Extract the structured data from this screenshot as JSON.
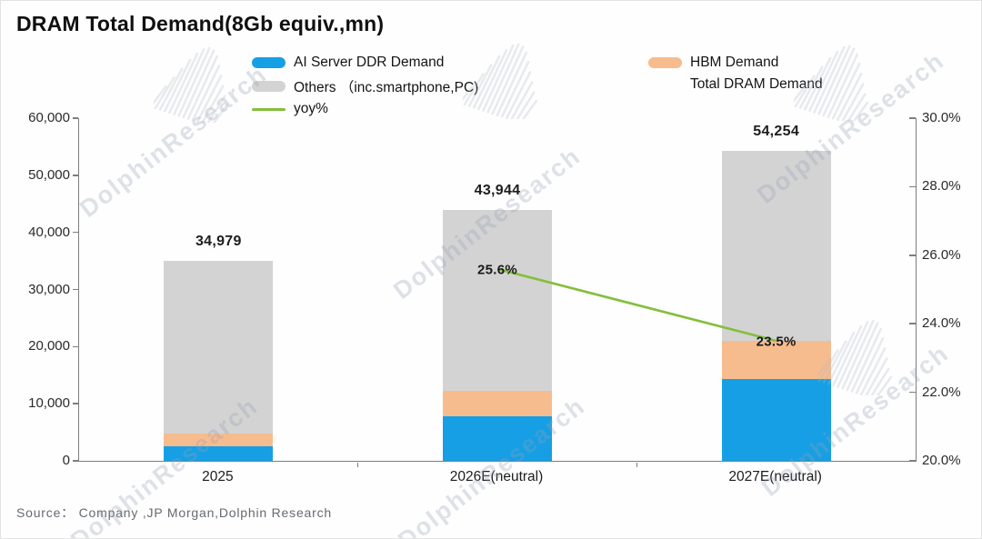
{
  "title": "DRAM Total Demand(8Gb equiv.,mn)",
  "source_note": "Source：  Company ,JP Morgan,Dolphin Research",
  "watermark_text": "DolphinResearch",
  "legend": {
    "ai": "AI Server DDR Demand",
    "hbm": "HBM Demand",
    "others": "Others （inc.smartphone,PC)",
    "total": "Total DRAM Demand",
    "yoy": "yoy%"
  },
  "chart_data": {
    "type": "bar",
    "subtype": "stacked-bars-with-right-axis-line",
    "title": "DRAM Total Demand(8Gb equiv.,mn)",
    "categories": [
      "2025",
      "2026E(neutral)",
      "2027E(neutral)"
    ],
    "series": [
      {
        "name": "AI Server DDR Demand",
        "color": "#169FE4",
        "values": [
          2500,
          7800,
          14300
        ]
      },
      {
        "name": "HBM Demand",
        "color": "#F7BC8E",
        "values": [
          2200,
          4400,
          6700
        ]
      },
      {
        "name": "Others (inc.smartphone,PC)",
        "color": "#D3D3D3",
        "values": [
          30279,
          31744,
          33254
        ]
      }
    ],
    "totals": [
      34979,
      43944,
      54254
    ],
    "total_labels": [
      "34,979",
      "43,944",
      "54,254"
    ],
    "line_series": {
      "name": "yoy%",
      "color": "#84BE3C",
      "axis": "right",
      "values": [
        null,
        25.6,
        23.5
      ],
      "labels": [
        null,
        "25.6%",
        "23.5%"
      ]
    },
    "left_axis": {
      "min": 0,
      "max": 60000,
      "step": 10000,
      "tick_labels": [
        "0",
        "10,000",
        "20,000",
        "30,000",
        "40,000",
        "50,000",
        "60,000"
      ]
    },
    "right_axis": {
      "min": 20,
      "max": 30,
      "step": 2,
      "tick_labels": [
        "20.0%",
        "22.0%",
        "24.0%",
        "26.0%",
        "28.0%",
        "30.0%"
      ]
    },
    "grid": false,
    "legend_position": "top"
  }
}
